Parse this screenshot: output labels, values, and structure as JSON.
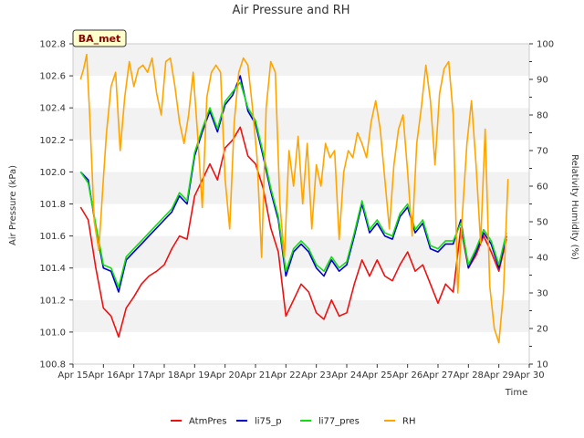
{
  "chart_data": {
    "type": "line",
    "title": "Air Pressure and RH",
    "station_label": "BA_met",
    "xlabel": "Time",
    "ylabel_left": "Air Pressure (kPa)",
    "ylabel_right": "Relativity Humidity (%)",
    "x_ticks": [
      15,
      16,
      17,
      18,
      19,
      20,
      21,
      22,
      23,
      24,
      25,
      26,
      27,
      28,
      29,
      30
    ],
    "x_tick_labels": [
      "Apr 15",
      "Apr 16",
      "Apr 17",
      "Apr 18",
      "Apr 19",
      "Apr 20",
      "Apr 21",
      "Apr 22",
      "Apr 23",
      "Apr 24",
      "Apr 25",
      "Apr 26",
      "Apr 27",
      "Apr 28",
      "Apr 29",
      "Apr 30"
    ],
    "xlim": [
      15,
      30
    ],
    "ylim_left": [
      100.8,
      102.8
    ],
    "y_ticks_left": [
      "100.8",
      "101.0",
      "101.2",
      "101.4",
      "101.6",
      "101.8",
      "102.0",
      "102.2",
      "102.4",
      "102.6",
      "102.8"
    ],
    "ylim_right": [
      10,
      100
    ],
    "y_ticks_right": [
      "10",
      "20",
      "30",
      "40",
      "50",
      "60",
      "70",
      "80",
      "90",
      "100"
    ],
    "grid": "horizontal bands",
    "legend_position": "bottom",
    "series": [
      {
        "name": "AtmPres",
        "axis": "left",
        "color": "#ee1111",
        "x": [
          15.25,
          15.5,
          15.75,
          16.0,
          16.25,
          16.5,
          16.75,
          17.0,
          17.25,
          17.5,
          17.75,
          18.0,
          18.25,
          18.5,
          18.75,
          19.0,
          19.25,
          19.5,
          19.75,
          20.0,
          20.25,
          20.5,
          20.75,
          21.0,
          21.25,
          21.5,
          21.75,
          22.0,
          22.25,
          22.5,
          22.75,
          23.0,
          23.25,
          23.5,
          23.75,
          24.0,
          24.25,
          24.5,
          24.75,
          25.0,
          25.25,
          25.5,
          25.75,
          26.0,
          26.25,
          26.5,
          26.75,
          27.0,
          27.25,
          27.5,
          27.75,
          28.0,
          28.25,
          28.5,
          28.75,
          29.0,
          29.25
        ],
        "y": [
          101.78,
          101.7,
          101.4,
          101.15,
          101.1,
          100.97,
          101.15,
          101.22,
          101.3,
          101.35,
          101.38,
          101.42,
          101.52,
          101.6,
          101.58,
          101.85,
          101.95,
          102.05,
          101.95,
          102.15,
          102.2,
          102.28,
          102.1,
          102.05,
          101.9,
          101.65,
          101.5,
          101.1,
          101.2,
          101.3,
          101.25,
          101.12,
          101.08,
          101.2,
          101.1,
          101.12,
          101.3,
          101.45,
          101.35,
          101.45,
          101.35,
          101.32,
          101.42,
          101.5,
          101.38,
          101.42,
          101.3,
          101.18,
          101.3,
          101.25,
          101.65,
          101.4,
          101.48,
          101.6,
          101.5,
          101.38,
          101.58
        ]
      },
      {
        "name": "li75_p",
        "axis": "left",
        "color": "#0000cc",
        "x": [
          15.25,
          15.5,
          15.75,
          16.0,
          16.25,
          16.5,
          16.75,
          17.0,
          17.25,
          17.5,
          17.75,
          18.0,
          18.25,
          18.5,
          18.75,
          19.0,
          19.25,
          19.5,
          19.75,
          20.0,
          20.25,
          20.5,
          20.75,
          21.0,
          21.25,
          21.5,
          21.75,
          22.0,
          22.25,
          22.5,
          22.75,
          23.0,
          23.25,
          23.5,
          23.75,
          24.0,
          24.25,
          24.5,
          24.75,
          25.0,
          25.25,
          25.5,
          25.75,
          26.0,
          26.25,
          26.5,
          26.75,
          27.0,
          27.25,
          27.5,
          27.75,
          28.0,
          28.25,
          28.5,
          28.75,
          29.0,
          29.25
        ],
        "y": [
          102.0,
          101.95,
          101.65,
          101.4,
          101.38,
          101.25,
          101.45,
          101.5,
          101.55,
          101.6,
          101.65,
          101.7,
          101.75,
          101.85,
          101.8,
          102.1,
          102.25,
          102.38,
          102.25,
          102.42,
          102.48,
          102.6,
          102.38,
          102.3,
          102.1,
          101.88,
          101.7,
          101.35,
          101.5,
          101.55,
          101.5,
          101.4,
          101.35,
          101.45,
          101.38,
          101.42,
          101.6,
          101.8,
          101.62,
          101.68,
          101.6,
          101.58,
          101.72,
          101.78,
          101.62,
          101.68,
          101.52,
          101.5,
          101.55,
          101.55,
          101.7,
          101.4,
          101.5,
          101.62,
          101.55,
          101.4,
          101.6
        ]
      },
      {
        "name": "li77_pres",
        "axis": "left",
        "color": "#11dd11",
        "x": [
          15.25,
          15.5,
          15.75,
          16.0,
          16.25,
          16.5,
          16.75,
          17.0,
          17.25,
          17.5,
          17.75,
          18.0,
          18.25,
          18.5,
          18.75,
          19.0,
          19.25,
          19.5,
          19.75,
          20.0,
          20.25,
          20.5,
          20.75,
          21.0,
          21.25,
          21.5,
          21.75,
          22.0,
          22.25,
          22.5,
          22.75,
          23.0,
          23.25,
          23.5,
          23.75,
          24.0,
          24.25,
          24.5,
          24.75,
          25.0,
          25.25,
          25.5,
          25.75,
          26.0,
          26.25,
          26.5,
          26.75,
          27.0,
          27.25,
          27.5,
          27.75,
          28.0,
          28.25,
          28.5,
          28.75,
          29.0,
          29.25
        ],
        "y": [
          102.0,
          101.93,
          101.67,
          101.42,
          101.4,
          101.28,
          101.47,
          101.52,
          101.57,
          101.62,
          101.67,
          101.72,
          101.77,
          101.87,
          101.82,
          102.12,
          102.27,
          102.4,
          102.27,
          102.44,
          102.5,
          102.56,
          102.4,
          102.32,
          102.12,
          101.9,
          101.72,
          101.38,
          101.52,
          101.57,
          101.52,
          101.42,
          101.38,
          101.47,
          101.4,
          101.44,
          101.62,
          101.82,
          101.64,
          101.7,
          101.62,
          101.6,
          101.74,
          101.8,
          101.64,
          101.7,
          101.54,
          101.52,
          101.57,
          101.57,
          101.68,
          101.42,
          101.52,
          101.64,
          101.57,
          101.42,
          101.62
        ]
      },
      {
        "name": "RH",
        "axis": "right",
        "color": "#ffa500",
        "x": [
          15.25,
          15.35,
          15.45,
          15.55,
          15.7,
          15.85,
          16.0,
          16.1,
          16.25,
          16.4,
          16.55,
          16.7,
          16.85,
          17.0,
          17.15,
          17.3,
          17.45,
          17.6,
          17.75,
          17.9,
          18.05,
          18.2,
          18.35,
          18.5,
          18.65,
          18.8,
          18.95,
          19.1,
          19.25,
          19.4,
          19.55,
          19.7,
          19.85,
          20.0,
          20.15,
          20.3,
          20.45,
          20.6,
          20.75,
          20.9,
          21.05,
          21.2,
          21.35,
          21.5,
          21.65,
          21.8,
          21.95,
          22.1,
          22.25,
          22.4,
          22.55,
          22.7,
          22.85,
          23.0,
          23.15,
          23.3,
          23.45,
          23.6,
          23.75,
          23.9,
          24.05,
          24.2,
          24.35,
          24.5,
          24.65,
          24.8,
          24.95,
          25.1,
          25.25,
          25.4,
          25.55,
          25.7,
          25.85,
          26.0,
          26.15,
          26.3,
          26.45,
          26.6,
          26.75,
          26.9,
          27.05,
          27.2,
          27.35,
          27.5,
          27.65,
          27.8,
          27.95,
          28.1,
          28.25,
          28.4,
          28.55,
          28.7,
          28.85,
          29.0,
          29.15,
          29.3
        ],
        "y": [
          90,
          93,
          97,
          80,
          50,
          42,
          62,
          75,
          88,
          92,
          70,
          85,
          95,
          88,
          93,
          94,
          92,
          96,
          86,
          80,
          95,
          96,
          88,
          78,
          72,
          80,
          92,
          74,
          54,
          85,
          92,
          94,
          92,
          62,
          48,
          78,
          92,
          96,
          94,
          82,
          68,
          40,
          82,
          95,
          92,
          55,
          40,
          70,
          60,
          74,
          55,
          72,
          48,
          66,
          60,
          72,
          68,
          70,
          45,
          64,
          70,
          68,
          75,
          72,
          68,
          78,
          84,
          76,
          62,
          48,
          66,
          76,
          80,
          64,
          46,
          72,
          82,
          94,
          84,
          66,
          86,
          93,
          95,
          80,
          30,
          52,
          72,
          84,
          66,
          44,
          76,
          32,
          20,
          16,
          30,
          62
        ]
      }
    ]
  }
}
